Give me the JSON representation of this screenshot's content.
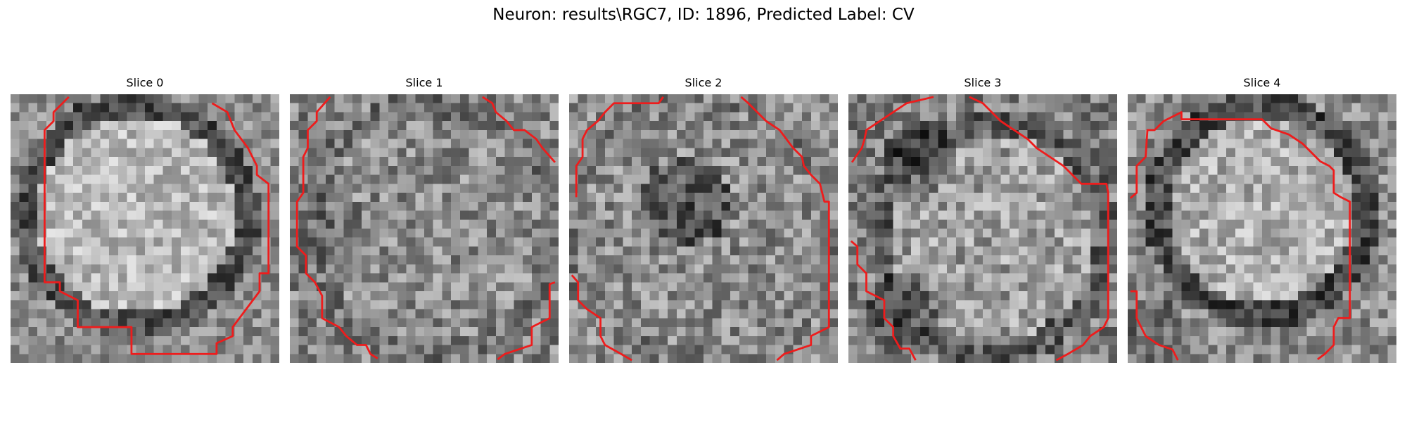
{
  "figure": {
    "title": "Neuron: results\\RGC7, ID: 1896, Predicted Label: CV"
  },
  "panels": [
    {
      "title": "Slice 0"
    },
    {
      "title": "Slice 1"
    },
    {
      "title": "Slice 2"
    },
    {
      "title": "Slice 3"
    },
    {
      "title": "Slice 4"
    }
  ],
  "colors": {
    "contour": "#ee1c1c",
    "background": "#ffffff"
  }
}
